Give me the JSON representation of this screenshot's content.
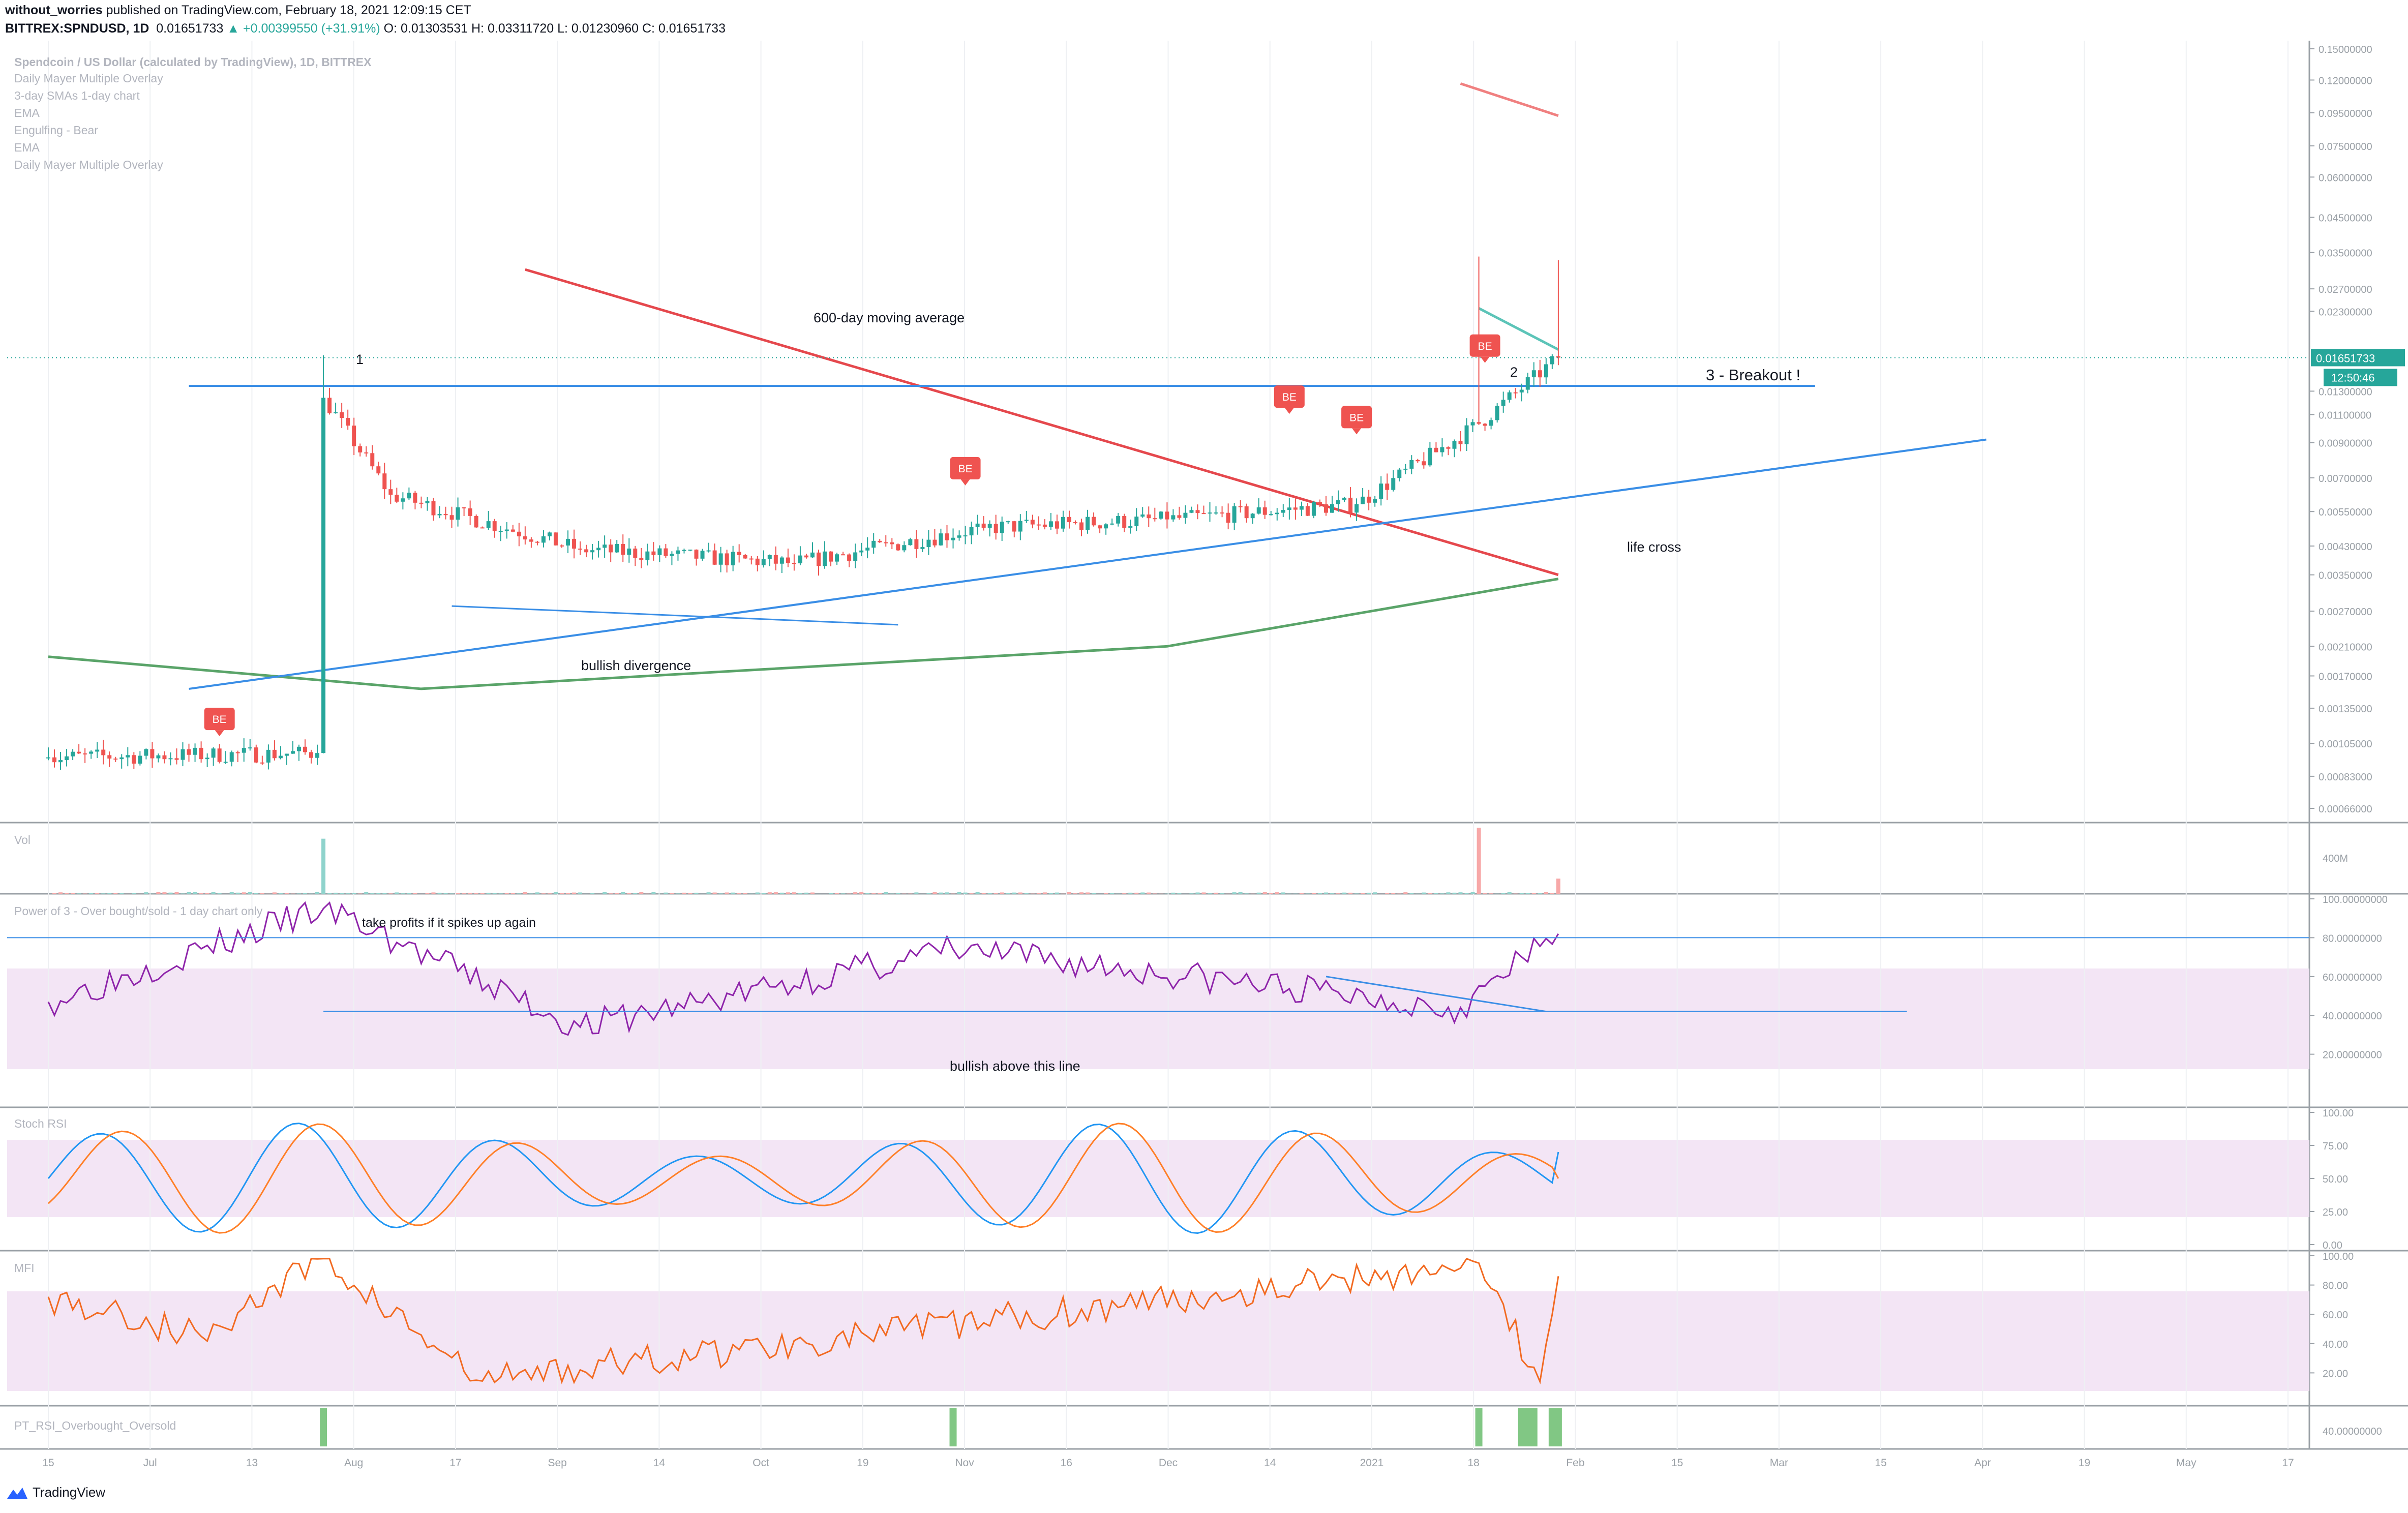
{
  "header": {
    "author": "without_worries",
    "published": "published on TradingView.com, February 18, 2021 12:09:15 CET",
    "symbol": "BITTREX:SPNDUSD, 1D",
    "price": "0.01651733",
    "change": "▲ +0.00399550 (+31.91%)",
    "ohlc": "O: 0.01303531 H: 0.03311720 L: 0.01230960 C: 0.01651733"
  },
  "legend": [
    "Spendcoin / US Dollar (calculated by TradingView), 1D, BITTREX",
    "Daily Mayer Multiple Overlay",
    "3-day SMAs 1-day chart",
    "EMA",
    "Engulfing - Bear",
    "EMA",
    "Daily Mayer Multiple Overlay"
  ],
  "price_axis": {
    "ticks": [
      "0.15000000",
      "0.12000000",
      "0.09500000",
      "0.07500000",
      "0.06000000",
      "0.04500000",
      "0.03500000",
      "0.02700000",
      "0.02300000",
      "0.01300000",
      "0.01100000",
      "0.00900000",
      "0.00700000",
      "0.00550000",
      "0.00430000",
      "0.00350000",
      "0.00270000",
      "0.00210000",
      "0.00170000",
      "0.00135000",
      "0.00105000",
      "0.00083000",
      "0.00066000"
    ],
    "last_price": "0.01651733",
    "countdown": "12:50:46"
  },
  "time_axis": {
    "labels": [
      "15",
      "Jul",
      "13",
      "Aug",
      "17",
      "Sep",
      "14",
      "Oct",
      "19",
      "Nov",
      "16",
      "Dec",
      "14",
      "2021",
      "18",
      "Feb",
      "15",
      "Mar",
      "15",
      "Apr",
      "19",
      "May",
      "17"
    ]
  },
  "annotations": {
    "n1": "1",
    "n2": "2",
    "breakout": "3 - Breakout !",
    "ma600": "600-day moving average",
    "life_cross": "life cross",
    "bullish_div": "bullish divergence",
    "take_profits": "take profits if it spikes up again",
    "bullish_above": "bullish above this line",
    "be": "BE"
  },
  "panes": {
    "vol": {
      "title": "Vol",
      "tick": "400M"
    },
    "power3": {
      "title": "Power of 3 - Over bought/sold - 1 day chart only",
      "ticks": [
        "100.00000000",
        "80.00000000",
        "60.00000000",
        "40.00000000",
        "20.00000000"
      ]
    },
    "stoch": {
      "title": "Stoch RSI",
      "ticks": [
        "100.00",
        "75.00",
        "50.00",
        "25.00",
        "0.00"
      ]
    },
    "mfi": {
      "title": "MFI",
      "ticks": [
        "100.00",
        "80.00",
        "60.00",
        "40.00",
        "20.00"
      ]
    },
    "pt": {
      "title": "PT_RSI_Overbought_Oversold",
      "tick": "40.00000000"
    }
  },
  "colors": {
    "up": "#26a69a",
    "down": "#ef5350",
    "ma600": "#e5484d",
    "ma_green": "#5aa469",
    "trend": "#3a8ee6",
    "power3": "#8e24aa",
    "stoch_k": "#2196f3",
    "stoch_d": "#ff7f27",
    "mfi": "#f26a21",
    "band": "#f3e5f5"
  },
  "footer": {
    "brand": "TradingView"
  },
  "chart_data": [
    {
      "type": "candlestick",
      "title": "Spendcoin / US Dollar (calculated by TradingView), 1D, BITTREX",
      "scale": "log",
      "ylim": [
        0.00066,
        0.15
      ],
      "x_range": [
        "2020-06-15",
        "2021-05-17"
      ],
      "key_points": [
        {
          "date": "2020-06-15",
          "close": 0.00095
        },
        {
          "date": "2020-07-29",
          "close": 0.00098
        },
        {
          "date": "2020-07-30",
          "high": 0.0168,
          "close": 0.0124
        },
        {
          "date": "2020-08-10",
          "close": 0.0062
        },
        {
          "date": "2020-09-10",
          "close": 0.0042
        },
        {
          "date": "2020-10-15",
          "close": 0.0038
        },
        {
          "date": "2020-11-15",
          "close": 0.0049
        },
        {
          "date": "2020-12-15",
          "close": 0.0052
        },
        {
          "date": "2021-01-15",
          "close": 0.0058
        },
        {
          "date": "2021-02-04",
          "high": 0.034,
          "close": 0.0103
        },
        {
          "date": "2021-02-17",
          "high": 0.0331172,
          "close": 0.01651733
        }
      ],
      "lines": [
        {
          "name": "600-day moving average",
          "points": [
            [
              "2020-09-01",
              0.031
            ],
            [
              "2021-02-17",
              0.0035
            ]
          ]
        },
        {
          "name": "ma_green",
          "points": [
            [
              "2020-06-15",
              0.00195
            ],
            [
              "2020-08-15",
              0.00155
            ],
            [
              "2020-12-15",
              0.0021
            ],
            [
              "2021-02-17",
              0.0034
            ]
          ]
        },
        {
          "name": "ma_red_top",
          "points": [
            [
              "2021-02-01",
              0.117
            ],
            [
              "2021-02-17",
              0.093
            ]
          ]
        },
        {
          "name": "ma_teal",
          "points": [
            [
              "2021-02-04",
              0.0235
            ],
            [
              "2021-02-17",
              0.0175
            ]
          ]
        }
      ]
    },
    {
      "type": "bar",
      "title": "Vol",
      "spikes": [
        {
          "date": "2020-07-30",
          "value": 400
        },
        {
          "date": "2021-02-04",
          "value": 480
        },
        {
          "date": "2021-02-17",
          "value": 110
        }
      ]
    },
    {
      "type": "line",
      "title": "Power of 3 - Over bought/sold - 1 day chart only",
      "ylim": [
        0,
        100
      ],
      "bands": [
        30,
        70
      ],
      "levels": [
        80,
        42
      ],
      "key_points": [
        {
          "date": "2020-06-15",
          "value": 47
        },
        {
          "date": "2020-07-30",
          "value": 95
        },
        {
          "date": "2020-09-10",
          "value": 34
        },
        {
          "date": "2020-11-10",
          "value": 74
        },
        {
          "date": "2021-02-01",
          "value": 44
        },
        {
          "date": "2021-02-17",
          "value": 82
        }
      ]
    },
    {
      "type": "line",
      "title": "Stoch RSI",
      "ylim": [
        0,
        100
      ],
      "series": [
        {
          "name": "K"
        },
        {
          "name": "D"
        }
      ],
      "bands": [
        20,
        80
      ],
      "last": {
        "K": 70,
        "D": 50
      }
    },
    {
      "type": "line",
      "title": "MFI",
      "ylim": [
        0,
        100
      ],
      "bands": [
        20,
        80
      ],
      "key_points": [
        {
          "date": "2020-07-30",
          "value": 98
        },
        {
          "date": "2020-08-24",
          "value": 15
        },
        {
          "date": "2021-02-04",
          "value": 95
        },
        {
          "date": "2021-02-14",
          "value": 14
        },
        {
          "date": "2021-02-17",
          "value": 86
        }
      ]
    },
    {
      "type": "bar",
      "title": "PT_RSI_Overbought_Oversold",
      "signals": [
        "2020-07-30",
        "2020-11-10",
        "2021-02-04",
        "2021-02-11",
        "2021-02-12",
        "2021-02-13",
        "2021-02-16",
        "2021-02-17"
      ]
    }
  ]
}
